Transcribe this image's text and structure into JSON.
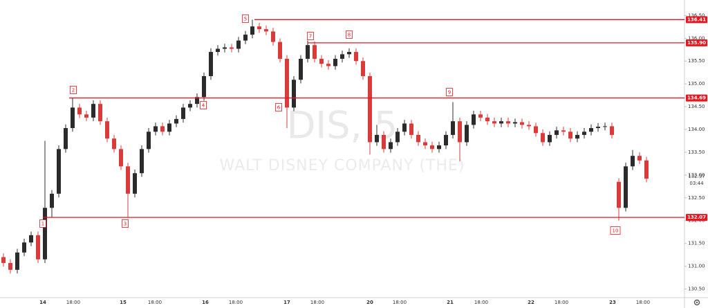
{
  "chart_data": {
    "type": "candlestick",
    "watermark": "DIS, 5",
    "subtitle": "WALT DISNEY COMPANY (THE)",
    "up_color": "#2b2b2b",
    "down_color": "#d93b3b",
    "level_color": "#e8141e",
    "ylim": [
      130.31,
      136.84
    ],
    "yticks": [
      {
        "value": 130.5,
        "label": "130.50"
      },
      {
        "value": 131,
        "label": "131.00"
      },
      {
        "value": 131.5,
        "label": "131.50"
      },
      {
        "value": 132,
        "label": "132.00"
      },
      {
        "value": 132.5,
        "label": "132.50"
      },
      {
        "value": 133,
        "label": "133.00"
      },
      {
        "value": 133.5,
        "label": "133.50"
      },
      {
        "value": 134,
        "label": "134.00"
      },
      {
        "value": 134.5,
        "label": "134.50"
      },
      {
        "value": 135,
        "label": "135.00"
      },
      {
        "value": 135.5,
        "label": "135.50"
      },
      {
        "value": 136,
        "label": "136.00"
      },
      {
        "value": 136.5,
        "label": "136.50"
      }
    ],
    "x_labels": [
      "14",
      "18:00",
      "15",
      "18:00",
      "16",
      "18:00",
      "17",
      "18:00",
      "20",
      "18:00",
      "21",
      "18:00",
      "22",
      "18:00",
      "23",
      "18:00"
    ],
    "levels": [
      136.41,
      {
        "value": 135.9,
        "label": "135.90"
      },
      134.69,
      132.07
    ],
    "current_price": 132.97,
    "countdown": "03:44",
    "annotations": [
      "1",
      "2",
      "3",
      "4",
      "5",
      "6",
      "7",
      "8",
      "9",
      "10"
    ],
    "ohlc": [
      [
        131.2,
        131.28,
        130.99,
        131.07
      ],
      [
        131.07,
        131.15,
        130.84,
        130.92
      ],
      [
        130.92,
        131.38,
        130.84,
        131.3
      ],
      [
        131.3,
        131.6,
        131.22,
        131.52
      ],
      [
        131.52,
        131.76,
        131.44,
        131.68
      ],
      [
        131.68,
        131.76,
        131.07,
        131.15
      ],
      [
        131.15,
        133.75,
        131.07,
        132.28
      ],
      [
        132.28,
        132.67,
        132.07,
        132.59
      ],
      [
        132.59,
        133.65,
        132.51,
        133.57
      ],
      [
        133.57,
        134.11,
        133.49,
        134.03
      ],
      [
        134.03,
        134.69,
        133.95,
        134.48
      ],
      [
        134.48,
        134.56,
        134.25,
        134.33
      ],
      [
        134.33,
        134.41,
        134.18,
        134.26
      ],
      [
        134.26,
        134.64,
        134.18,
        134.56
      ],
      [
        134.56,
        134.64,
        134.1,
        134.18
      ],
      [
        134.18,
        134.26,
        133.72,
        133.8
      ],
      [
        133.8,
        133.88,
        133.49,
        133.57
      ],
      [
        133.57,
        133.65,
        133.11,
        133.19
      ],
      [
        133.19,
        133.27,
        132.07,
        132.59
      ],
      [
        132.59,
        133.12,
        132.51,
        133.04
      ],
      [
        133.04,
        133.65,
        132.96,
        133.57
      ],
      [
        133.57,
        134.03,
        133.49,
        133.95
      ],
      [
        133.95,
        134.15,
        133.87,
        134.07
      ],
      [
        134.07,
        134.15,
        133.87,
        133.95
      ],
      [
        133.95,
        134.21,
        133.87,
        134.13
      ],
      [
        134.13,
        134.31,
        134.05,
        134.23
      ],
      [
        134.23,
        134.56,
        134.15,
        134.48
      ],
      [
        134.48,
        134.64,
        134.4,
        134.56
      ],
      [
        134.56,
        134.79,
        134.48,
        134.71
      ],
      [
        134.71,
        135.25,
        134.63,
        135.17
      ],
      [
        135.17,
        135.78,
        135.09,
        135.7
      ],
      [
        135.7,
        135.85,
        135.62,
        135.77
      ],
      [
        135.77,
        135.88,
        135.69,
        135.8
      ],
      [
        135.8,
        135.88,
        135.69,
        135.77
      ],
      [
        135.77,
        136.03,
        135.69,
        135.95
      ],
      [
        135.95,
        136.16,
        135.87,
        136.08
      ],
      [
        136.08,
        136.41,
        136.0,
        136.26
      ],
      [
        136.26,
        136.34,
        136.12,
        136.2
      ],
      [
        136.2,
        136.28,
        136.07,
        136.15
      ],
      [
        136.15,
        136.23,
        135.84,
        135.92
      ],
      [
        135.92,
        136.0,
        135.47,
        135.55
      ],
      [
        135.55,
        135.63,
        134.03,
        134.48
      ],
      [
        134.48,
        135.17,
        134.4,
        135.09
      ],
      [
        135.09,
        135.63,
        135.01,
        135.55
      ],
      [
        135.55,
        135.95,
        135.47,
        135.85
      ],
      [
        135.85,
        135.93,
        135.47,
        135.55
      ],
      [
        135.55,
        135.63,
        135.36,
        135.44
      ],
      [
        135.44,
        135.52,
        135.31,
        135.39
      ],
      [
        135.39,
        135.63,
        135.31,
        135.55
      ],
      [
        135.55,
        135.73,
        135.47,
        135.65
      ],
      [
        135.65,
        135.78,
        135.57,
        135.7
      ],
      [
        135.7,
        135.78,
        135.42,
        135.5
      ],
      [
        135.5,
        135.58,
        135.09,
        135.17
      ],
      [
        135.17,
        135.25,
        133.45,
        133.72
      ],
      [
        133.72,
        134.1,
        133.64,
        133.88
      ],
      [
        133.88,
        133.96,
        133.49,
        133.57
      ],
      [
        133.57,
        133.8,
        133.49,
        133.72
      ],
      [
        133.72,
        134.03,
        133.64,
        133.95
      ],
      [
        133.95,
        134.21,
        133.87,
        134.13
      ],
      [
        134.13,
        134.21,
        133.8,
        133.88
      ],
      [
        133.88,
        133.96,
        133.64,
        133.72
      ],
      [
        133.72,
        133.8,
        133.57,
        133.65
      ],
      [
        133.65,
        133.73,
        133.49,
        133.57
      ],
      [
        133.57,
        133.73,
        133.49,
        133.65
      ],
      [
        133.65,
        133.96,
        133.57,
        133.88
      ],
      [
        133.88,
        134.6,
        133.8,
        134.18
      ],
      [
        134.18,
        134.26,
        133.3,
        133.72
      ],
      [
        133.72,
        134.18,
        133.64,
        134.1
      ],
      [
        134.1,
        134.41,
        134.02,
        134.33
      ],
      [
        134.33,
        134.41,
        134.18,
        134.26
      ],
      [
        134.26,
        134.34,
        134.1,
        134.18
      ],
      [
        134.18,
        134.26,
        134.05,
        134.13
      ],
      [
        134.13,
        134.26,
        134.05,
        134.18
      ],
      [
        134.18,
        134.26,
        134.05,
        134.13
      ],
      [
        134.13,
        134.24,
        134.05,
        134.16
      ],
      [
        134.16,
        134.24,
        134.02,
        134.1
      ],
      [
        134.1,
        134.18,
        133.99,
        134.07
      ],
      [
        134.07,
        134.15,
        133.84,
        133.92
      ],
      [
        133.92,
        134.0,
        133.64,
        133.72
      ],
      [
        133.72,
        133.96,
        133.64,
        133.88
      ],
      [
        133.88,
        134.06,
        133.8,
        133.98
      ],
      [
        133.98,
        134.06,
        133.87,
        133.95
      ],
      [
        133.95,
        134.03,
        133.72,
        133.8
      ],
      [
        133.8,
        133.96,
        133.72,
        133.88
      ],
      [
        133.88,
        134.03,
        133.8,
        133.95
      ],
      [
        133.95,
        134.11,
        133.87,
        134.03
      ],
      [
        134.03,
        134.14,
        133.95,
        134.06
      ],
      [
        134.06,
        134.15,
        133.98,
        134.07
      ],
      [
        134.07,
        134.15,
        133.8,
        133.88
      ],
      [
        132.85,
        132.93,
        132.0,
        132.28
      ],
      [
        132.28,
        133.27,
        132.2,
        133.19
      ],
      [
        133.19,
        133.55,
        133.11,
        133.42
      ],
      [
        133.42,
        133.5,
        133.24,
        133.32
      ],
      [
        133.32,
        133.4,
        132.84,
        132.92
      ]
    ]
  }
}
